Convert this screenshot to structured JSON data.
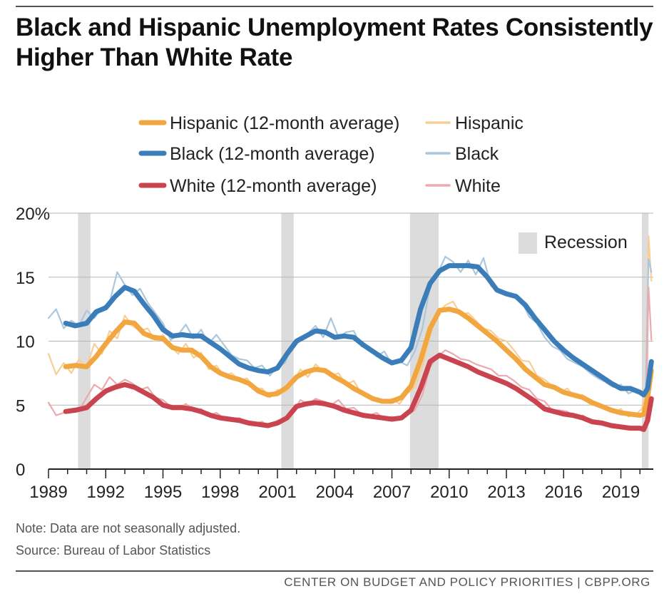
{
  "title": "Black and Hispanic Unemployment Rates Consistently Higher Than White Rate",
  "notes": {
    "note": "Note: Data are not seasonally adjusted.",
    "source": "Source: Bureau of Labor Statistics"
  },
  "footer": "CENTER ON BUDGET AND POLICY PRIORITIES | CBPP.ORG",
  "colors": {
    "hispanic": "#F2A640",
    "black": "#3A7DB8",
    "white": "#C9444F",
    "hispanic_raw": "#F7CF95",
    "black_raw": "#A9C7DE",
    "white_raw": "#EBAAB0",
    "recession": "#DCDCDC",
    "grid": "#B5B5B5"
  },
  "chart_data": {
    "type": "line",
    "title": "Black and Hispanic Unemployment Rates Consistently Higher Than White Rate",
    "ylabel": "",
    "xlabel": "",
    "ylim": [
      0,
      20
    ],
    "xlim": [
      1989.0,
      2020.7
    ],
    "y_ticks": [
      0,
      5,
      10,
      15,
      20
    ],
    "y_tick_labels": [
      "0",
      "5",
      "10",
      "15",
      "20%"
    ],
    "x_ticks": [
      1989,
      1992,
      1995,
      1998,
      2001,
      2004,
      2007,
      2010,
      2013,
      2016,
      2019
    ],
    "x_tick_labels": [
      "1989",
      "1992",
      "1995",
      "1998",
      "2001",
      "2004",
      "2007",
      "2010",
      "2013",
      "2016",
      "2019"
    ],
    "grid": true,
    "legend_position": "top",
    "recessions": [
      {
        "label": "Recession",
        "start": 1990.55,
        "end": 1991.2
      },
      {
        "start": 2001.2,
        "end": 2001.85
      },
      {
        "start": 2007.95,
        "end": 2009.45
      },
      {
        "start": 2020.1,
        "end": 2020.45
      }
    ],
    "legend": [
      {
        "key": "hispanic_avg",
        "label": "Hispanic (12-month average)"
      },
      {
        "key": "hispanic_raw",
        "label": "Hispanic"
      },
      {
        "key": "black_avg",
        "label": "Black (12-month average)"
      },
      {
        "key": "black_raw",
        "label": "Black"
      },
      {
        "key": "white_avg",
        "label": "White (12-month average)"
      },
      {
        "key": "white_raw",
        "label": "White"
      }
    ],
    "recession_label": "Recession",
    "series": [
      {
        "name": "Hispanic (12-month average)",
        "key": "hispanic_avg",
        "x": [
          1989.9,
          1990.4,
          1991.0,
          1991.5,
          1992.0,
          1992.5,
          1993.0,
          1993.5,
          1994.0,
          1994.5,
          1995.0,
          1995.5,
          1996.0,
          1996.5,
          1997.0,
          1997.5,
          1998.0,
          1998.5,
          1999.0,
          1999.5,
          2000.0,
          2000.5,
          2001.0,
          2001.5,
          2002.0,
          2002.5,
          2003.0,
          2003.5,
          2004.0,
          2004.5,
          2005.0,
          2005.5,
          2006.0,
          2006.5,
          2007.0,
          2007.5,
          2008.0,
          2008.5,
          2009.0,
          2009.5,
          2010.0,
          2010.5,
          2011.0,
          2011.5,
          2012.0,
          2012.5,
          2013.0,
          2013.5,
          2014.0,
          2014.5,
          2015.0,
          2015.5,
          2016.0,
          2016.5,
          2017.0,
          2017.5,
          2018.0,
          2018.5,
          2019.0,
          2019.5,
          2020.0,
          2020.2,
          2020.4,
          2020.6
        ],
        "values": [
          8.0,
          8.1,
          8.0,
          8.8,
          9.8,
          10.7,
          11.5,
          11.4,
          10.6,
          10.3,
          10.2,
          9.5,
          9.3,
          9.3,
          8.8,
          8.0,
          7.5,
          7.2,
          7.0,
          6.7,
          6.1,
          5.8,
          5.9,
          6.4,
          7.2,
          7.6,
          7.8,
          7.7,
          7.2,
          6.8,
          6.3,
          5.9,
          5.5,
          5.3,
          5.3,
          5.6,
          6.5,
          8.5,
          11.0,
          12.4,
          12.5,
          12.3,
          11.8,
          11.2,
          10.6,
          10.0,
          9.3,
          8.6,
          7.8,
          7.2,
          6.6,
          6.4,
          6.0,
          5.8,
          5.6,
          5.2,
          4.9,
          4.6,
          4.4,
          4.3,
          4.2,
          4.3,
          5.6,
          7.7
        ]
      },
      {
        "name": "Black (12-month average)",
        "key": "black_avg",
        "x": [
          1989.9,
          1990.4,
          1991.0,
          1991.5,
          1992.0,
          1992.5,
          1993.0,
          1993.5,
          1994.0,
          1994.5,
          1995.0,
          1995.5,
          1996.0,
          1996.5,
          1997.0,
          1997.5,
          1998.0,
          1998.5,
          1999.0,
          1999.5,
          2000.0,
          2000.5,
          2001.0,
          2001.5,
          2002.0,
          2002.5,
          2003.0,
          2003.5,
          2004.0,
          2004.5,
          2005.0,
          2005.5,
          2006.0,
          2006.5,
          2007.0,
          2007.5,
          2008.0,
          2008.5,
          2009.0,
          2009.5,
          2010.0,
          2010.5,
          2011.0,
          2011.5,
          2012.0,
          2012.5,
          2013.0,
          2013.5,
          2014.0,
          2014.5,
          2015.0,
          2015.5,
          2016.0,
          2016.5,
          2017.0,
          2017.5,
          2018.0,
          2018.5,
          2019.0,
          2019.5,
          2020.0,
          2020.2,
          2020.4,
          2020.6
        ],
        "values": [
          11.4,
          11.2,
          11.4,
          12.3,
          12.6,
          13.5,
          14.2,
          13.9,
          12.9,
          12.0,
          10.9,
          10.4,
          10.5,
          10.4,
          10.4,
          9.9,
          9.4,
          8.8,
          8.2,
          7.9,
          7.7,
          7.6,
          7.9,
          9.0,
          10.0,
          10.4,
          10.8,
          10.7,
          10.3,
          10.4,
          10.3,
          9.7,
          9.2,
          8.7,
          8.3,
          8.5,
          9.5,
          12.5,
          14.5,
          15.5,
          15.9,
          15.9,
          15.9,
          15.8,
          15.0,
          14.0,
          13.7,
          13.5,
          12.8,
          11.8,
          10.9,
          10.0,
          9.3,
          8.7,
          8.2,
          7.7,
          7.2,
          6.7,
          6.3,
          6.3,
          6.0,
          5.8,
          6.3,
          8.4
        ]
      },
      {
        "name": "White (12-month average)",
        "key": "white_avg",
        "x": [
          1989.9,
          1990.4,
          1991.0,
          1991.5,
          1992.0,
          1992.5,
          1993.0,
          1993.5,
          1994.0,
          1994.5,
          1995.0,
          1995.5,
          1996.0,
          1996.5,
          1997.0,
          1997.5,
          1998.0,
          1998.5,
          1999.0,
          1999.5,
          2000.0,
          2000.5,
          2001.0,
          2001.5,
          2002.0,
          2002.5,
          2003.0,
          2003.5,
          2004.0,
          2004.5,
          2005.0,
          2005.5,
          2006.0,
          2006.5,
          2007.0,
          2007.5,
          2008.0,
          2008.5,
          2009.0,
          2009.5,
          2010.0,
          2010.5,
          2011.0,
          2011.5,
          2012.0,
          2012.5,
          2013.0,
          2013.5,
          2014.0,
          2014.5,
          2015.0,
          2015.5,
          2016.0,
          2016.5,
          2017.0,
          2017.5,
          2018.0,
          2018.5,
          2019.0,
          2019.5,
          2020.0,
          2020.2,
          2020.4,
          2020.6
        ],
        "values": [
          4.5,
          4.6,
          4.8,
          5.5,
          6.1,
          6.4,
          6.6,
          6.4,
          6.0,
          5.6,
          5.0,
          4.8,
          4.8,
          4.7,
          4.5,
          4.2,
          4.0,
          3.9,
          3.8,
          3.6,
          3.5,
          3.4,
          3.6,
          4.0,
          4.9,
          5.1,
          5.2,
          5.1,
          4.9,
          4.6,
          4.4,
          4.2,
          4.1,
          4.0,
          3.9,
          4.0,
          4.6,
          6.3,
          8.4,
          8.9,
          8.6,
          8.3,
          8.0,
          7.6,
          7.3,
          7.0,
          6.7,
          6.3,
          5.8,
          5.3,
          4.7,
          4.5,
          4.3,
          4.2,
          4.0,
          3.7,
          3.6,
          3.4,
          3.3,
          3.2,
          3.2,
          3.1,
          3.8,
          5.5
        ]
      },
      {
        "name": "Hispanic",
        "key": "hispanic_raw",
        "x": [
          1989.0,
          1989.4,
          1989.8,
          1990.2,
          1990.6,
          1991.0,
          1991.4,
          1991.8,
          1992.2,
          1992.6,
          1993.0,
          1993.4,
          1993.8,
          1994.2,
          1994.6,
          1995.0,
          1995.4,
          1995.8,
          1996.2,
          1996.6,
          1997.0,
          1997.4,
          1997.8,
          1998.2,
          1998.6,
          1999.0,
          1999.4,
          1999.8,
          2000.2,
          2000.6,
          2001.0,
          2001.4,
          2001.8,
          2002.2,
          2002.6,
          2003.0,
          2003.4,
          2003.8,
          2004.2,
          2004.6,
          2005.0,
          2005.4,
          2005.8,
          2006.2,
          2006.6,
          2007.0,
          2007.4,
          2007.8,
          2008.2,
          2008.6,
          2009.0,
          2009.4,
          2009.8,
          2010.2,
          2010.6,
          2011.0,
          2011.4,
          2011.8,
          2012.2,
          2012.6,
          2013.0,
          2013.4,
          2013.8,
          2014.2,
          2014.6,
          2015.0,
          2015.4,
          2015.8,
          2016.2,
          2016.6,
          2017.0,
          2017.4,
          2017.8,
          2018.2,
          2018.6,
          2019.0,
          2019.4,
          2019.8,
          2020.1,
          2020.3,
          2020.45,
          2020.6
        ],
        "values": [
          9.0,
          7.4,
          8.3,
          7.5,
          8.6,
          7.9,
          9.8,
          9.0,
          10.8,
          10.2,
          12.0,
          11.2,
          10.8,
          11.0,
          10.0,
          10.5,
          9.6,
          9.0,
          9.8,
          8.7,
          9.1,
          7.8,
          8.1,
          7.3,
          7.5,
          6.9,
          7.1,
          6.3,
          6.3,
          5.6,
          6.2,
          6.0,
          6.7,
          7.8,
          7.2,
          8.2,
          7.6,
          7.3,
          7.5,
          6.6,
          6.9,
          5.9,
          5.7,
          5.5,
          5.2,
          5.5,
          5.1,
          5.9,
          6.4,
          8.0,
          10.5,
          12.2,
          12.8,
          13.1,
          12.1,
          12.2,
          11.6,
          11.0,
          10.8,
          10.2,
          10.0,
          9.3,
          8.5,
          8.4,
          7.3,
          7.0,
          6.5,
          6.0,
          6.3,
          5.6,
          5.8,
          5.0,
          5.1,
          4.8,
          4.4,
          4.7,
          4.1,
          4.3,
          4.7,
          6.0,
          18.2,
          14.7
        ]
      },
      {
        "name": "Black",
        "key": "black_raw",
        "x": [
          1989.0,
          1989.4,
          1989.8,
          1990.2,
          1990.6,
          1991.0,
          1991.4,
          1991.8,
          1992.2,
          1992.6,
          1993.0,
          1993.4,
          1993.8,
          1994.2,
          1994.6,
          1995.0,
          1995.4,
          1995.8,
          1996.2,
          1996.6,
          1997.0,
          1997.4,
          1997.8,
          1998.2,
          1998.6,
          1999.0,
          1999.4,
          1999.8,
          2000.2,
          2000.6,
          2001.0,
          2001.4,
          2001.8,
          2002.2,
          2002.6,
          2003.0,
          2003.4,
          2003.8,
          2004.2,
          2004.6,
          2005.0,
          2005.4,
          2005.8,
          2006.2,
          2006.6,
          2007.0,
          2007.4,
          2007.8,
          2008.2,
          2008.6,
          2009.0,
          2009.4,
          2009.8,
          2010.2,
          2010.6,
          2011.0,
          2011.4,
          2011.8,
          2012.2,
          2012.6,
          2013.0,
          2013.4,
          2013.8,
          2014.2,
          2014.6,
          2015.0,
          2015.4,
          2015.8,
          2016.2,
          2016.6,
          2017.0,
          2017.4,
          2017.8,
          2018.2,
          2018.6,
          2019.0,
          2019.4,
          2019.8,
          2020.1,
          2020.3,
          2020.45,
          2020.6
        ],
        "values": [
          11.8,
          12.5,
          11.0,
          11.6,
          11.2,
          12.4,
          11.8,
          12.6,
          13.0,
          15.4,
          14.4,
          13.6,
          14.1,
          13.0,
          12.2,
          11.4,
          10.1,
          10.5,
          11.3,
          10.2,
          10.9,
          9.8,
          10.5,
          9.7,
          8.9,
          8.6,
          8.5,
          7.9,
          8.1,
          7.3,
          8.0,
          8.3,
          9.9,
          10.3,
          10.6,
          11.2,
          10.3,
          11.8,
          10.3,
          10.7,
          10.8,
          9.6,
          9.5,
          8.8,
          9.2,
          8.2,
          8.4,
          8.1,
          9.2,
          11.0,
          14.3,
          15.3,
          16.6,
          16.2,
          15.4,
          16.3,
          15.2,
          16.5,
          14.3,
          14.0,
          13.8,
          13.5,
          13.1,
          11.9,
          11.4,
          10.3,
          9.6,
          9.3,
          8.6,
          8.3,
          8.0,
          7.5,
          7.1,
          6.8,
          6.4,
          6.6,
          5.9,
          6.2,
          6.0,
          5.8,
          16.4,
          15.4
        ]
      },
      {
        "name": "White",
        "key": "white_raw",
        "x": [
          1989.0,
          1989.4,
          1989.8,
          1990.2,
          1990.6,
          1991.0,
          1991.4,
          1991.8,
          1992.2,
          1992.6,
          1993.0,
          1993.4,
          1993.8,
          1994.2,
          1994.6,
          1995.0,
          1995.4,
          1995.8,
          1996.2,
          1996.6,
          1997.0,
          1997.4,
          1997.8,
          1998.2,
          1998.6,
          1999.0,
          1999.4,
          1999.8,
          2000.2,
          2000.6,
          2001.0,
          2001.4,
          2001.8,
          2002.2,
          2002.6,
          2003.0,
          2003.4,
          2003.8,
          2004.2,
          2004.6,
          2005.0,
          2005.4,
          2005.8,
          2006.2,
          2006.6,
          2007.0,
          2007.4,
          2007.8,
          2008.2,
          2008.6,
          2009.0,
          2009.4,
          2009.8,
          2010.2,
          2010.6,
          2011.0,
          2011.4,
          2011.8,
          2012.2,
          2012.6,
          2013.0,
          2013.4,
          2013.8,
          2014.2,
          2014.6,
          2015.0,
          2015.4,
          2015.8,
          2016.2,
          2016.6,
          2017.0,
          2017.4,
          2017.8,
          2018.2,
          2018.6,
          2019.0,
          2019.4,
          2019.8,
          2020.1,
          2020.3,
          2020.45,
          2020.6
        ],
        "values": [
          5.2,
          4.2,
          4.4,
          4.6,
          4.6,
          5.6,
          6.6,
          6.2,
          7.2,
          6.6,
          7.0,
          6.7,
          6.2,
          6.4,
          5.6,
          5.4,
          4.9,
          4.7,
          5.1,
          4.6,
          4.7,
          4.2,
          4.4,
          4.0,
          3.9,
          4.0,
          3.7,
          3.6,
          3.7,
          3.3,
          3.8,
          3.9,
          4.4,
          5.4,
          5.1,
          5.5,
          5.3,
          5.0,
          5.4,
          4.7,
          4.8,
          4.3,
          4.2,
          4.4,
          3.9,
          4.1,
          3.9,
          4.3,
          4.6,
          5.8,
          8.0,
          8.8,
          9.3,
          9.0,
          8.6,
          8.5,
          8.2,
          8.0,
          7.8,
          7.3,
          7.3,
          6.9,
          6.4,
          6.2,
          5.5,
          5.3,
          4.6,
          4.6,
          4.5,
          4.0,
          4.2,
          3.8,
          3.7,
          3.5,
          3.3,
          3.4,
          3.1,
          3.2,
          3.3,
          3.6,
          14.2,
          10.1
        ]
      }
    ]
  }
}
